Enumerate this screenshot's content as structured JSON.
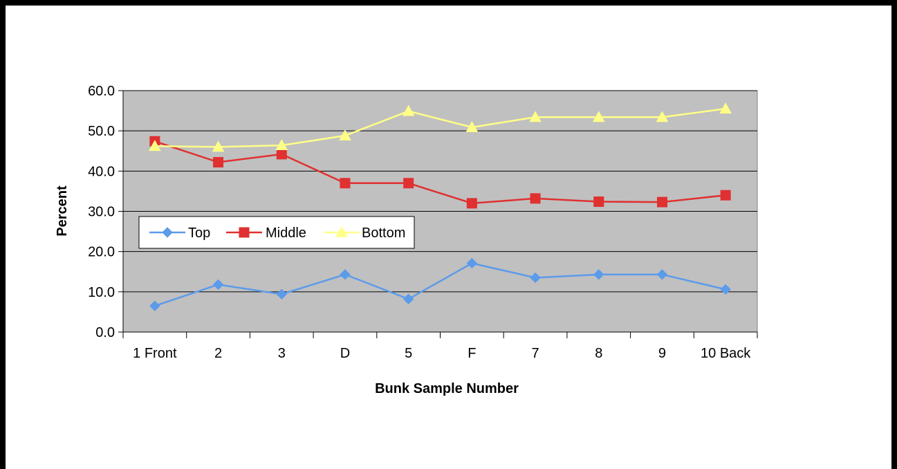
{
  "chart_data": {
    "type": "line",
    "categories": [
      "1 Front",
      "2",
      "3",
      "D",
      "5",
      "F",
      "7",
      "8",
      "9",
      "10 Back"
    ],
    "series": [
      {
        "name": "Top",
        "color": "#5b9bea",
        "marker": "diamond",
        "values": [
          6.5,
          11.8,
          9.4,
          14.3,
          8.2,
          17.1,
          13.5,
          14.3,
          14.3,
          10.6
        ]
      },
      {
        "name": "Middle",
        "color": "#e03030",
        "marker": "square",
        "values": [
          47.4,
          42.2,
          44.2,
          37.0,
          37.0,
          32.0,
          33.2,
          32.4,
          32.3,
          34.0
        ]
      },
      {
        "name": "Bottom",
        "color": "#ffff88",
        "marker": "triangle",
        "values": [
          46.2,
          46.0,
          46.4,
          48.8,
          54.9,
          50.9,
          53.4,
          53.4,
          53.4,
          55.5
        ]
      }
    ],
    "xlabel": "Bunk Sample Number",
    "ylabel": "Percent",
    "ylim": [
      0,
      60
    ],
    "yticks": [
      "0.0",
      "10.0",
      "20.0",
      "30.0",
      "40.0",
      "50.0",
      "60.0"
    ],
    "plot_background": "#c0c0c0",
    "grid": true,
    "legend_position": "left, inside plot"
  }
}
